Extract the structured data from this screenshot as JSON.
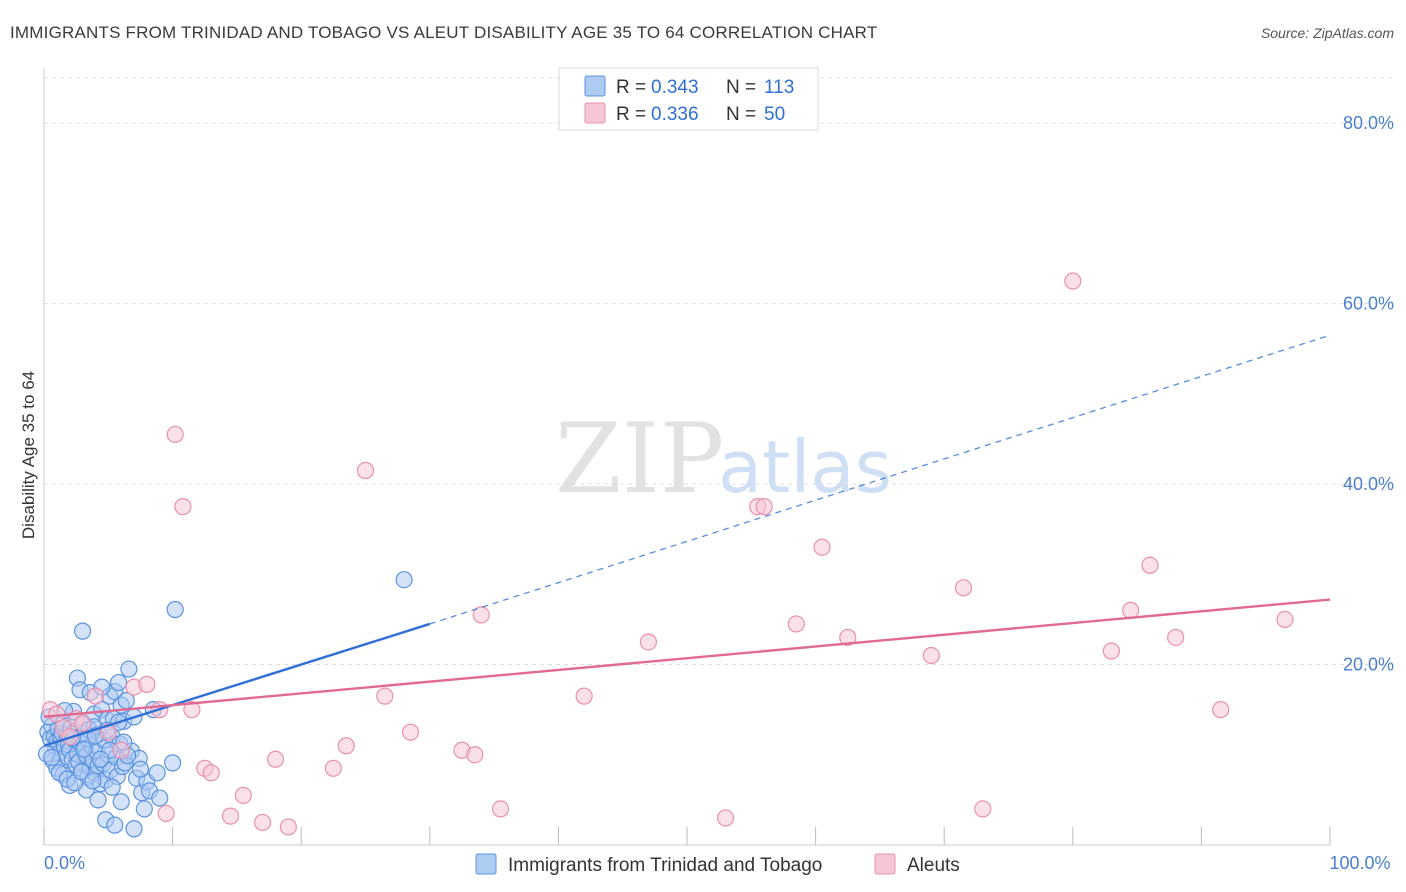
{
  "chart_data": {
    "type": "scatter",
    "title": "IMMIGRANTS FROM TRINIDAD AND TOBAGO VS ALEUT DISABILITY AGE 35 TO 64 CORRELATION CHART",
    "source": "Source: ZipAtlas.com",
    "watermark": {
      "zip": "ZIP",
      "atlas": "atlas"
    },
    "ylabel": "Disability Age 35 to 64",
    "xlim": [
      0,
      100
    ],
    "ylim": [
      0,
      85
    ],
    "x_tick_labels": [
      {
        "value": 0,
        "label": "0.0%"
      },
      {
        "value": 100,
        "label": "100.0%"
      }
    ],
    "y_tick_labels": [
      {
        "value": 20,
        "label": "20.0%"
      },
      {
        "value": 40,
        "label": "40.0%"
      },
      {
        "value": 60,
        "label": "60.0%"
      },
      {
        "value": 80,
        "label": "80.0%"
      }
    ],
    "x_minor_ticks": [
      0,
      10,
      20,
      30,
      40,
      50,
      60,
      70,
      80,
      90,
      100
    ],
    "gridlines_y": [
      20,
      40,
      60,
      80
    ],
    "grid": true,
    "legend_top": [
      {
        "series": "blue",
        "r_label": "R =",
        "r_value": "0.343",
        "n_label": "N =",
        "n_value": "113"
      },
      {
        "series": "pink",
        "r_label": "R =",
        "r_value": "0.336",
        "n_label": "N =",
        "n_value": "50"
      }
    ],
    "series": [
      {
        "name": "Immigrants from Trinidad and Tobago",
        "key": "blue",
        "color": "#5b93e0",
        "fill": "#aecbf2",
        "trend": {
          "x0": 0,
          "y0": 11.0,
          "x1": 30,
          "y1": 24.5,
          "dashed_to_x": 100,
          "dashed_to_y": 56.5,
          "line_color": "#2f6fd6"
        },
        "points": [
          [
            0.3,
            12.5
          ],
          [
            0.5,
            11.8
          ],
          [
            0.6,
            13.2
          ],
          [
            0.8,
            12.0
          ],
          [
            0.9,
            10.8
          ],
          [
            1.0,
            11.5
          ],
          [
            1.1,
            12.9
          ],
          [
            1.2,
            10.2
          ],
          [
            1.3,
            11.9
          ],
          [
            1.4,
            12.4
          ],
          [
            1.5,
            13.5
          ],
          [
            1.6,
            10.9
          ],
          [
            1.7,
            9.8
          ],
          [
            1.8,
            12.2
          ],
          [
            1.9,
            11.1
          ],
          [
            2.0,
            10.5
          ],
          [
            2.1,
            13.0
          ],
          [
            2.2,
            9.5
          ],
          [
            2.3,
            11.7
          ],
          [
            2.4,
            12.6
          ],
          [
            2.5,
            8.9
          ],
          [
            2.6,
            10.1
          ],
          [
            2.7,
            9.2
          ],
          [
            2.8,
            11.3
          ],
          [
            2.9,
            12.1
          ],
          [
            3.0,
            8.2
          ],
          [
            3.1,
            13.4
          ],
          [
            3.2,
            10.7
          ],
          [
            3.3,
            9.9
          ],
          [
            3.4,
            7.5
          ],
          [
            3.5,
            12.8
          ],
          [
            3.6,
            8.6
          ],
          [
            3.7,
            11.0
          ],
          [
            3.8,
            9.4
          ],
          [
            3.9,
            14.5
          ],
          [
            4.0,
            7.9
          ],
          [
            4.1,
            10.3
          ],
          [
            4.2,
            8.8
          ],
          [
            4.3,
            12.3
          ],
          [
            4.4,
            6.8
          ],
          [
            4.5,
            15.0
          ],
          [
            4.6,
            9.0
          ],
          [
            4.7,
            11.6
          ],
          [
            4.8,
            7.2
          ],
          [
            4.9,
            13.9
          ],
          [
            5.0,
            10.0
          ],
          [
            5.1,
            16.5
          ],
          [
            5.2,
            8.3
          ],
          [
            5.3,
            12.0
          ],
          [
            5.4,
            14.0
          ],
          [
            5.5,
            17.0
          ],
          [
            5.6,
            9.7
          ],
          [
            5.7,
            7.6
          ],
          [
            5.8,
            18.0
          ],
          [
            5.9,
            11.2
          ],
          [
            6.0,
            15.5
          ],
          [
            6.1,
            8.7
          ],
          [
            6.2,
            13.7
          ],
          [
            6.3,
            9.1
          ],
          [
            6.4,
            16.0
          ],
          [
            6.6,
            19.5
          ],
          [
            6.8,
            10.4
          ],
          [
            7.0,
            14.2
          ],
          [
            7.2,
            7.4
          ],
          [
            7.4,
            9.6
          ],
          [
            7.6,
            5.8
          ],
          [
            7.8,
            4.0
          ],
          [
            8.0,
            7.0
          ],
          [
            8.2,
            6.0
          ],
          [
            8.5,
            15.0
          ],
          [
            8.8,
            8.0
          ],
          [
            9.0,
            5.2
          ],
          [
            0.4,
            14.2
          ],
          [
            0.7,
            9.3
          ],
          [
            1.0,
            8.5
          ],
          [
            1.5,
            7.8
          ],
          [
            2.0,
            6.6
          ],
          [
            2.3,
            14.8
          ],
          [
            2.6,
            18.5
          ],
          [
            2.8,
            17.2
          ],
          [
            3.0,
            23.7
          ],
          [
            3.3,
            6.1
          ],
          [
            3.6,
            16.9
          ],
          [
            3.9,
            13.1
          ],
          [
            4.2,
            5.0
          ],
          [
            4.5,
            17.5
          ],
          [
            4.8,
            2.8
          ],
          [
            5.1,
            10.5
          ],
          [
            5.5,
            2.2
          ],
          [
            6.0,
            4.8
          ],
          [
            6.5,
            9.9
          ],
          [
            7.0,
            1.8
          ],
          [
            7.5,
            8.4
          ],
          [
            10.0,
            9.1
          ],
          [
            10.2,
            26.1
          ],
          [
            0.2,
            10.1
          ],
          [
            0.6,
            9.7
          ],
          [
            1.2,
            8.0
          ],
          [
            1.8,
            7.3
          ],
          [
            2.4,
            6.9
          ],
          [
            2.9,
            8.1
          ],
          [
            3.4,
            11.8
          ],
          [
            3.8,
            7.1
          ],
          [
            4.4,
            9.5
          ],
          [
            4.9,
            12.7
          ],
          [
            5.3,
            6.4
          ],
          [
            5.8,
            13.6
          ],
          [
            6.2,
            11.4
          ],
          [
            28.0,
            29.4
          ],
          [
            1.6,
            14.9
          ],
          [
            3.1,
            10.6
          ],
          [
            4.0,
            12.1
          ],
          [
            2.2,
            11.9
          ]
        ]
      },
      {
        "name": "Aleuts",
        "key": "pink",
        "color": "#e890b0",
        "fill": "#f6c6d6",
        "trend": {
          "x0": 0,
          "y0": 14.2,
          "x1": 100,
          "y1": 27.2,
          "line_color": "#e06a94"
        },
        "points": [
          [
            0.5,
            15.0
          ],
          [
            1.0,
            14.5
          ],
          [
            1.5,
            13.0
          ],
          [
            2.0,
            12.0
          ],
          [
            2.5,
            14.0
          ],
          [
            3.0,
            13.5
          ],
          [
            4.0,
            16.5
          ],
          [
            5.0,
            12.5
          ],
          [
            6.0,
            10.5
          ],
          [
            7.0,
            17.5
          ],
          [
            8.0,
            17.8
          ],
          [
            9.0,
            15.0
          ],
          [
            9.5,
            3.5
          ],
          [
            10.2,
            45.5
          ],
          [
            10.8,
            37.5
          ],
          [
            11.5,
            15.0
          ],
          [
            12.5,
            8.5
          ],
          [
            13.0,
            8.0
          ],
          [
            14.5,
            3.2
          ],
          [
            15.5,
            5.5
          ],
          [
            17.0,
            2.5
          ],
          [
            18.0,
            9.5
          ],
          [
            19.0,
            2.0
          ],
          [
            22.5,
            8.5
          ],
          [
            23.5,
            11.0
          ],
          [
            25.0,
            41.5
          ],
          [
            26.5,
            16.5
          ],
          [
            28.5,
            12.5
          ],
          [
            32.5,
            10.5
          ],
          [
            33.5,
            10.0
          ],
          [
            34.0,
            25.5
          ],
          [
            35.5,
            4.0
          ],
          [
            42.0,
            16.5
          ],
          [
            47.0,
            22.5
          ],
          [
            53.0,
            3.0
          ],
          [
            55.5,
            37.5
          ],
          [
            56.0,
            37.5
          ],
          [
            58.5,
            24.5
          ],
          [
            60.5,
            33.0
          ],
          [
            62.5,
            23.0
          ],
          [
            69.0,
            21.0
          ],
          [
            71.5,
            28.5
          ],
          [
            73.0,
            4.0
          ],
          [
            80.0,
            62.5
          ],
          [
            83.0,
            21.5
          ],
          [
            84.5,
            26.0
          ],
          [
            86.0,
            31.0
          ],
          [
            88.0,
            23.0
          ],
          [
            91.5,
            15.0
          ],
          [
            96.5,
            25.0
          ]
        ]
      }
    ],
    "bottom_legend": [
      {
        "series": "blue",
        "label": "Immigrants from Trinidad and Tobago"
      },
      {
        "series": "pink",
        "label": "Aleuts"
      }
    ]
  }
}
